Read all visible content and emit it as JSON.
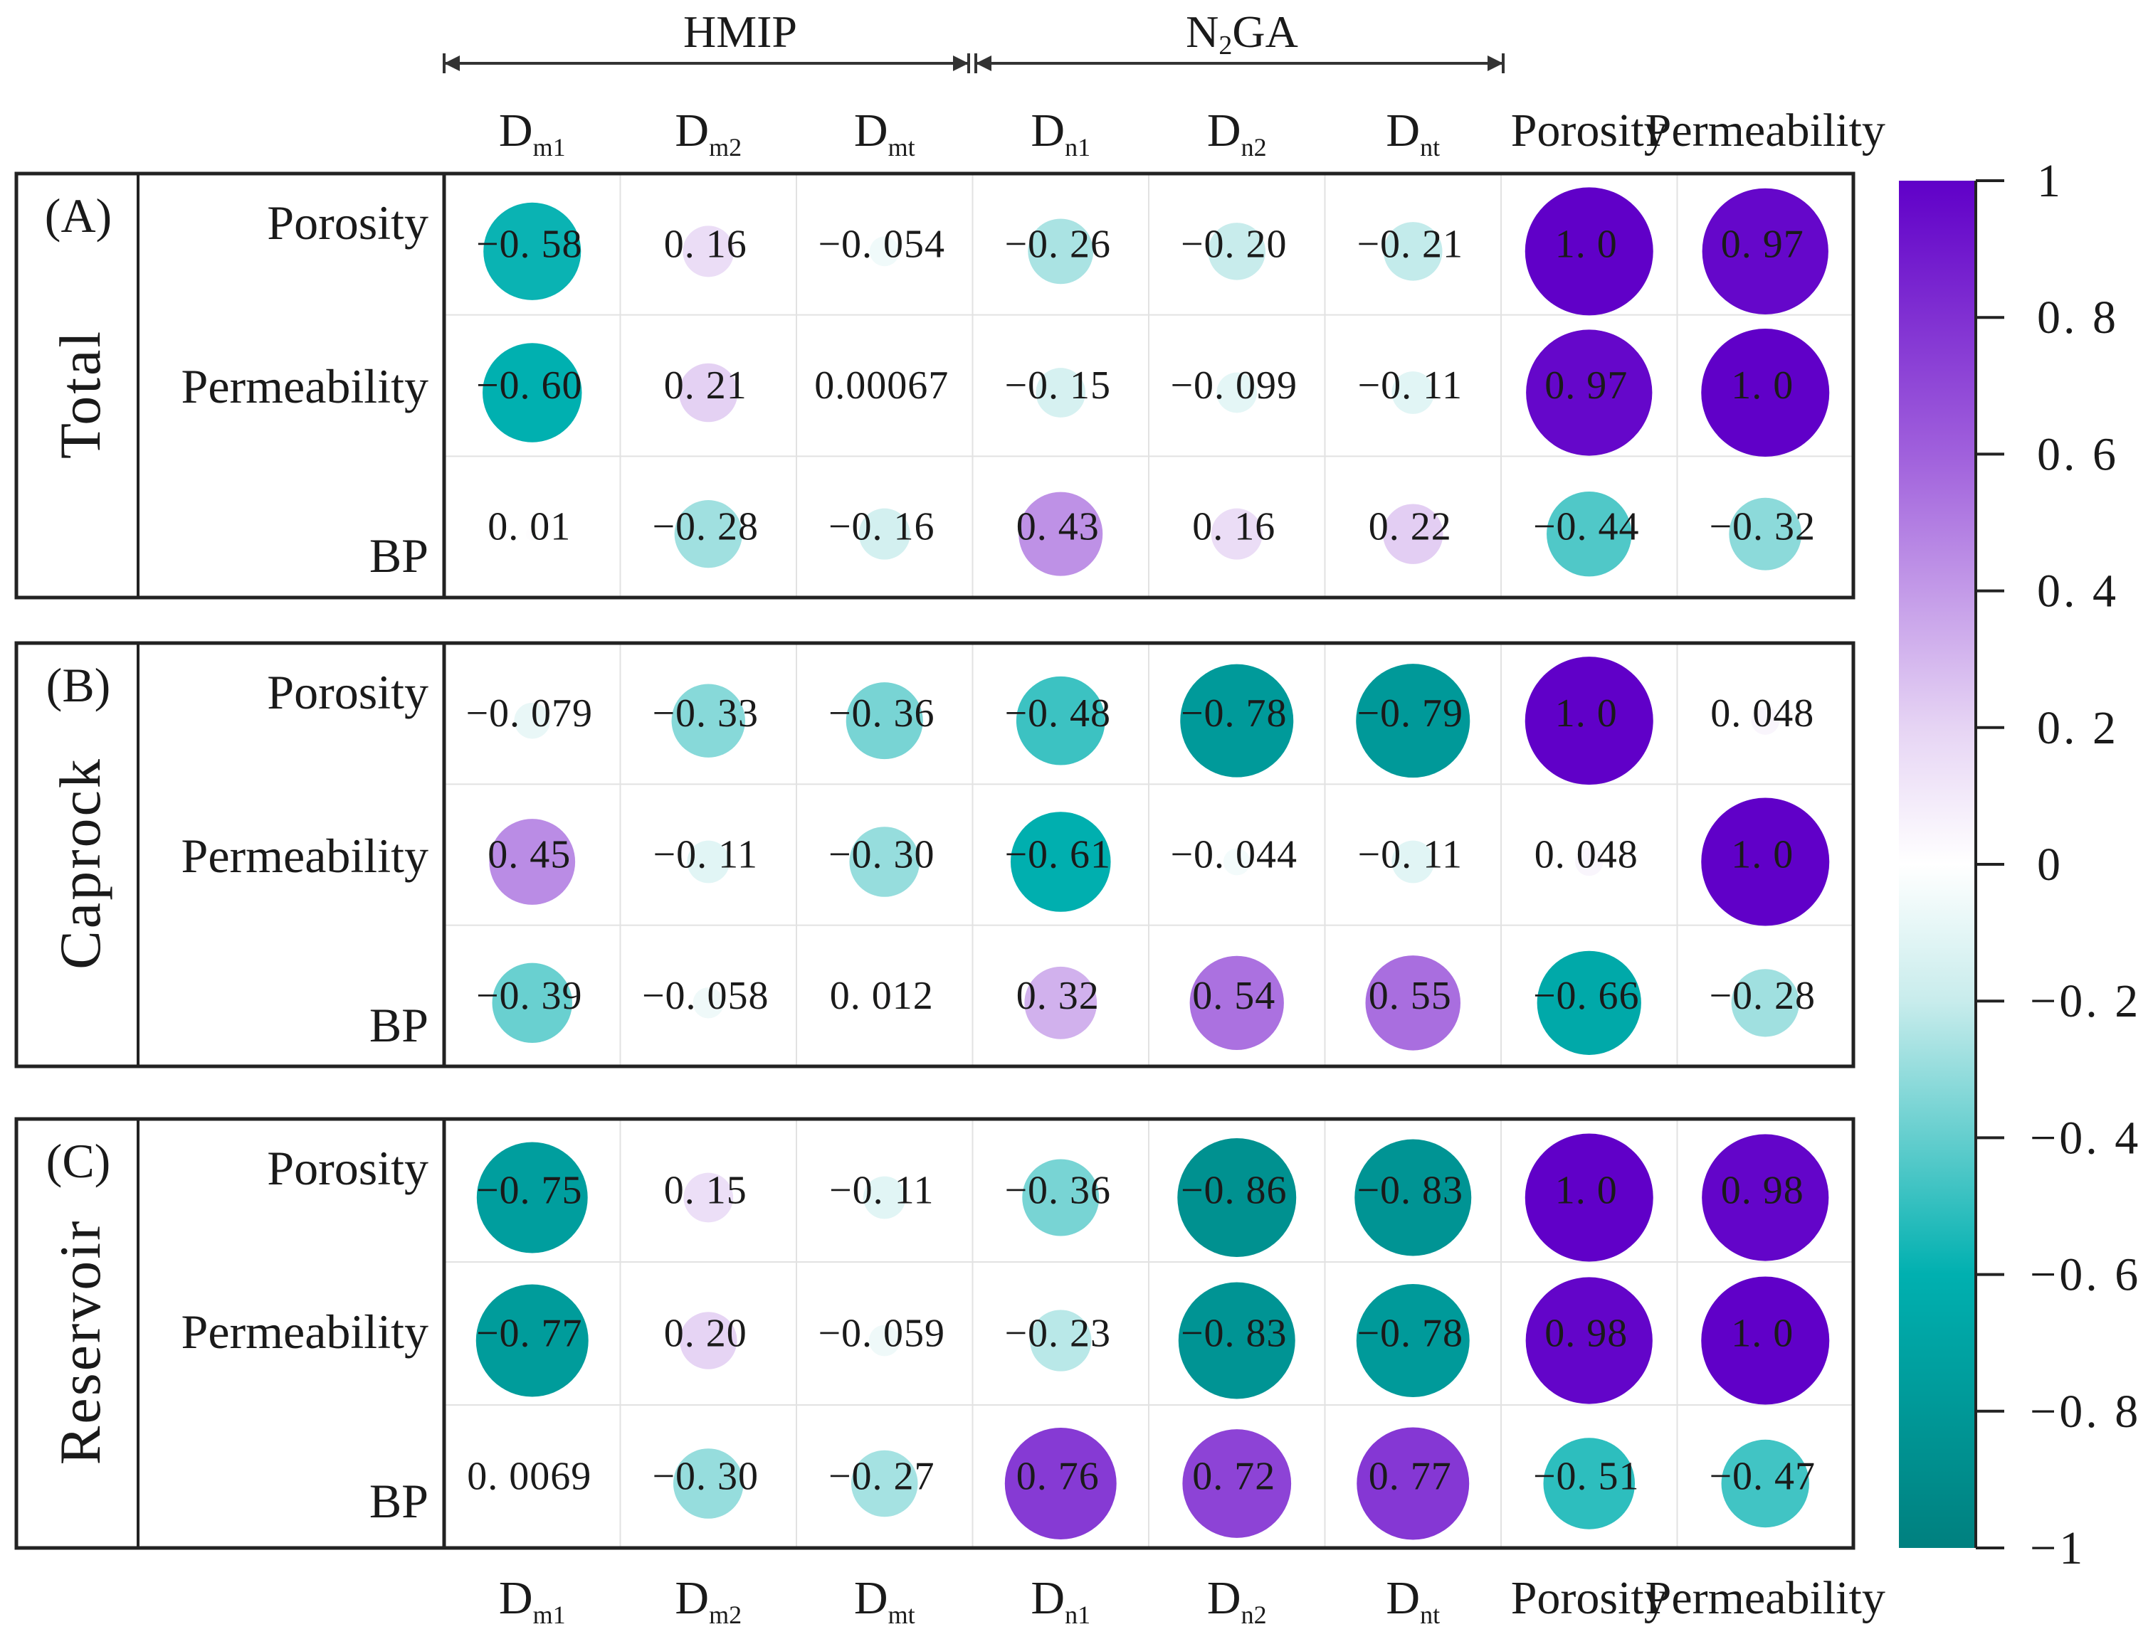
{
  "chart_data": {
    "type": "heatmap",
    "subtype": "correlation circle matrix",
    "column_groups": [
      {
        "label": "HMIP",
        "columns": [
          "Dm1",
          "Dm2",
          "Dmt"
        ]
      },
      {
        "label": "N2GA",
        "label_main": "N",
        "label_sub": "2",
        "label_tail": "GA",
        "columns": [
          "Dn1",
          "Dn2",
          "Dnt"
        ]
      }
    ],
    "columns": [
      {
        "main": "D",
        "sub": "m1"
      },
      {
        "main": "D",
        "sub": "m2"
      },
      {
        "main": "D",
        "sub": "mt"
      },
      {
        "main": "D",
        "sub": "n1"
      },
      {
        "main": "D",
        "sub": "n2"
      },
      {
        "main": "D",
        "sub": "nt"
      },
      {
        "main": "Porosity",
        "sub": ""
      },
      {
        "main": "Permeability",
        "sub": ""
      }
    ],
    "panels": [
      {
        "tag": "(A)",
        "title": "Total",
        "rows": [
          "Porosity",
          "Permeability",
          "BP"
        ],
        "values": [
          [
            -0.58,
            0.16,
            -0.054,
            -0.26,
            -0.2,
            -0.21,
            1.0,
            0.97
          ],
          [
            -0.6,
            0.21,
            0.00067,
            -0.15,
            -0.099,
            -0.11,
            0.97,
            1.0
          ],
          [
            0.01,
            -0.28,
            -0.16,
            0.43,
            0.16,
            0.22,
            -0.44,
            -0.32
          ]
        ],
        "labels": [
          [
            "−0. 58",
            "0. 16",
            "−0. 054",
            "−0. 26",
            "−0. 20",
            "−0. 21",
            "1. 0",
            "0. 97"
          ],
          [
            "−0. 60",
            "0. 21",
            "0.00067",
            "−0. 15",
            "−0. 099",
            "−0. 11",
            "0. 97",
            "1. 0"
          ],
          [
            "0. 01",
            "−0. 28",
            "−0. 16",
            "0. 43",
            "0. 16",
            "0. 22",
            "−0. 44",
            "−0. 32"
          ]
        ]
      },
      {
        "tag": "(B)",
        "title": "Caprock",
        "rows": [
          "Porosity",
          "Permeability",
          "BP"
        ],
        "values": [
          [
            -0.079,
            -0.33,
            -0.36,
            -0.48,
            -0.78,
            -0.79,
            1.0,
            0.048
          ],
          [
            0.45,
            -0.11,
            -0.3,
            -0.61,
            -0.044,
            -0.11,
            0.048,
            1.0
          ],
          [
            -0.39,
            -0.058,
            0.012,
            0.32,
            0.54,
            0.55,
            -0.66,
            -0.28
          ]
        ],
        "labels": [
          [
            "−0. 079",
            "−0. 33",
            "−0. 36",
            "−0. 48",
            "−0. 78",
            "−0. 79",
            "1. 0",
            "0. 048"
          ],
          [
            "0. 45",
            "−0. 11",
            "−0. 30",
            "−0. 61",
            "−0. 044",
            "−0. 11",
            "0. 048",
            "1. 0"
          ],
          [
            "−0. 39",
            "−0. 058",
            "0. 012",
            "0. 32",
            "0. 54",
            "0. 55",
            "−0. 66",
            "−0. 28"
          ]
        ]
      },
      {
        "tag": "(C)",
        "title": "Reservoir",
        "rows": [
          "Porosity",
          "Permeability",
          "BP"
        ],
        "values": [
          [
            -0.75,
            0.15,
            -0.11,
            -0.36,
            -0.86,
            -0.83,
            1.0,
            0.98
          ],
          [
            -0.77,
            0.2,
            -0.059,
            -0.23,
            -0.83,
            -0.78,
            0.98,
            1.0
          ],
          [
            0.0069,
            -0.3,
            -0.27,
            0.76,
            0.72,
            0.77,
            -0.51,
            -0.47
          ]
        ],
        "labels": [
          [
            "−0. 75",
            "0. 15",
            "−0. 11",
            "−0. 36",
            "−0. 86",
            "−0. 83",
            "1. 0",
            "0. 98"
          ],
          [
            "−0. 77",
            "0. 20",
            "−0. 059",
            "−0. 23",
            "−0. 83",
            "−0. 78",
            "0. 98",
            "1. 0"
          ],
          [
            "0. 0069",
            "−0. 30",
            "−0. 27",
            "0. 76",
            "0. 72",
            "0. 77",
            "−0. 51",
            "−0. 47"
          ]
        ]
      }
    ],
    "colorbar": {
      "range": [
        -1,
        1
      ],
      "ticks": [
        1,
        0.8,
        0.6,
        0.4,
        0.2,
        0,
        -0.2,
        -0.4,
        -0.6,
        -0.8,
        -1
      ],
      "tick_labels": [
        "1",
        "0. 8",
        "0. 6",
        "0. 4",
        "0. 2",
        "0",
        "−0. 2",
        "−0. 4",
        "−0. 6",
        "−0. 8",
        "−1"
      ],
      "colors": {
        "-1": "#00807f",
        "-0.6": "#00b0b0",
        "-0.2": "#c8ecec",
        "0": "#ffffff",
        "0.2": "#e6d4f4",
        "0.6": "#a060dc",
        "1": "#6000c8"
      }
    }
  }
}
